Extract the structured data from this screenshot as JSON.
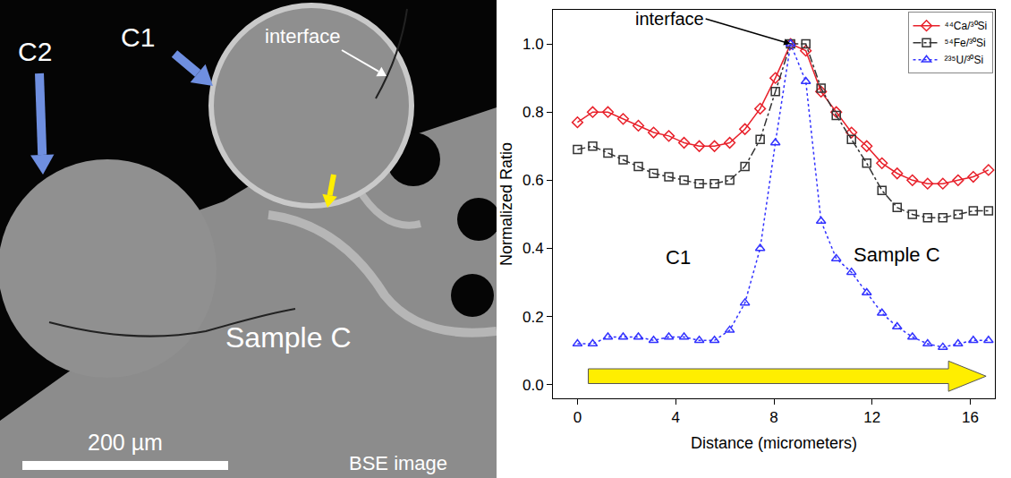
{
  "image_panel": {
    "labels": [
      "C2",
      "C1",
      "interface",
      "Sample C"
    ],
    "scale_bar": "200 µm",
    "caption": "BSE image"
  },
  "chart_data": {
    "type": "line",
    "x_label": "Distance (micrometers)",
    "y_label": "Normalized Ratio",
    "annotations": [
      "interface",
      "C1",
      "Sample C"
    ],
    "x": [
      0,
      0.62,
      1.24,
      1.86,
      2.48,
      3.1,
      3.72,
      4.34,
      4.96,
      5.58,
      6.2,
      6.82,
      7.44,
      8.06,
      8.68,
      9.3,
      9.92,
      10.54,
      11.16,
      11.78,
      12.4,
      13.02,
      13.64,
      14.26,
      14.88,
      15.5,
      16.12,
      16.74
    ],
    "series": [
      {
        "name": "⁴⁴Ca/³⁰Si",
        "color": "#e8202a",
        "marker": "diamond-open",
        "line_style": "solid",
        "values": [
          0.77,
          0.8,
          0.8,
          0.78,
          0.76,
          0.74,
          0.73,
          0.71,
          0.7,
          0.7,
          0.71,
          0.75,
          0.81,
          0.9,
          1.0,
          0.98,
          0.86,
          0.8,
          0.74,
          0.7,
          0.65,
          0.62,
          0.6,
          0.59,
          0.59,
          0.6,
          0.61,
          0.63
        ]
      },
      {
        "name": "⁵⁴Fe/³⁰Si",
        "color": "#333333",
        "marker": "square-open",
        "line_style": "dashdot",
        "values": [
          0.69,
          0.7,
          0.68,
          0.66,
          0.64,
          0.62,
          0.61,
          0.6,
          0.59,
          0.59,
          0.6,
          0.64,
          0.72,
          0.86,
          1.0,
          1.0,
          0.87,
          0.79,
          0.72,
          0.65,
          0.57,
          0.52,
          0.5,
          0.49,
          0.49,
          0.5,
          0.51,
          0.51
        ]
      },
      {
        "name": "²³⁵U/³⁰Si",
        "color": "#3333ff",
        "marker": "triangle-up-open",
        "line_style": "dot",
        "values": [
          0.12,
          0.12,
          0.14,
          0.14,
          0.14,
          0.13,
          0.14,
          0.14,
          0.13,
          0.13,
          0.16,
          0.24,
          0.4,
          0.71,
          1.0,
          0.89,
          0.48,
          0.37,
          0.33,
          0.27,
          0.21,
          0.17,
          0.14,
          0.12,
          0.11,
          0.12,
          0.13,
          0.13
        ]
      }
    ],
    "xlim": [
      -1,
      17
    ],
    "xticks": [
      0,
      4,
      8,
      12,
      16
    ],
    "ylim": [
      -0.04,
      1.1
    ],
    "yticks": [
      {
        "value": 0,
        "label": "0.0"
      },
      {
        "value": 0.2,
        "label": "0.2"
      },
      {
        "value": 0.4,
        "label": "0.4"
      },
      {
        "value": 0.6,
        "label": "0.6"
      },
      {
        "value": 0.8,
        "label": "0.8"
      },
      {
        "value": 1.0,
        "label": "1.0"
      }
    ],
    "grid": false,
    "legend": "top right"
  }
}
